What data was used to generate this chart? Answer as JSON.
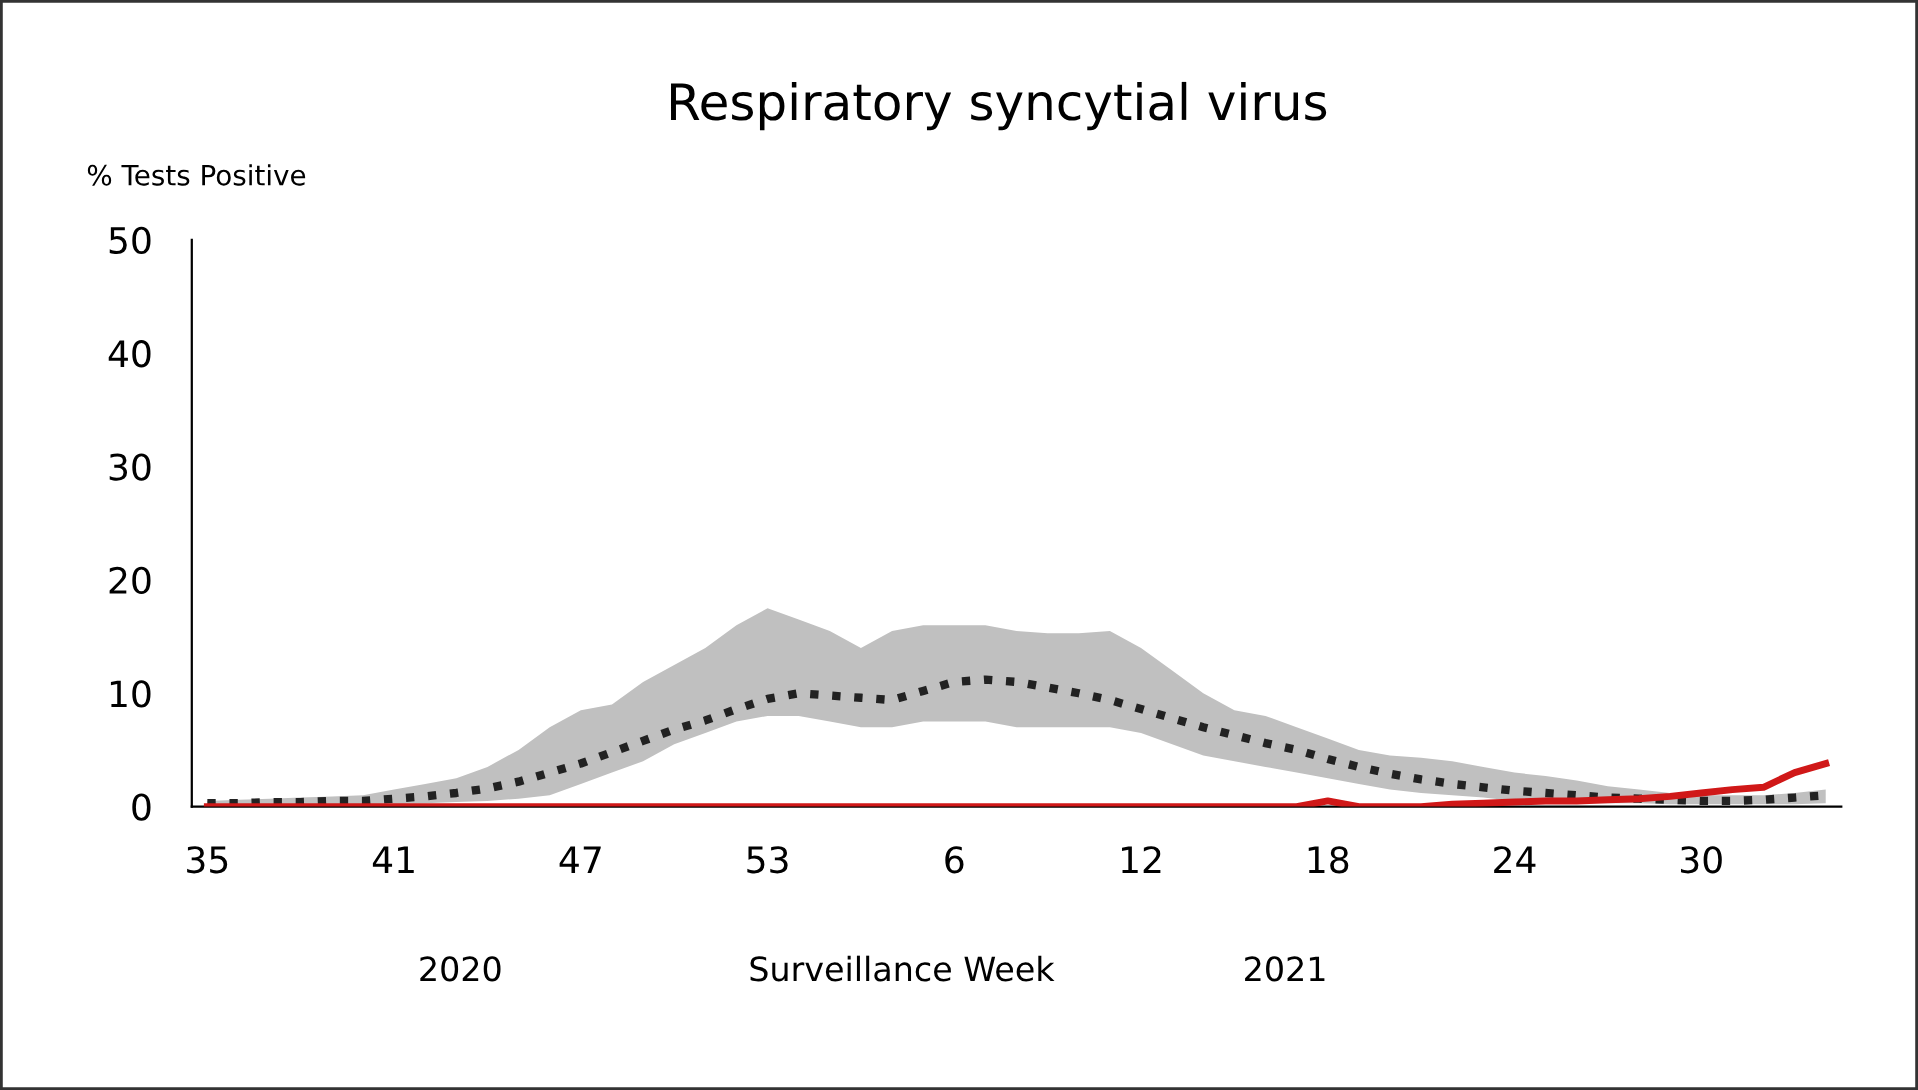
{
  "chart_data": {
    "type": "line",
    "title": "Respiratory syncytial virus",
    "xlabel": "Surveillance Week",
    "ylabel": "% Tests Positive",
    "annotations": [
      "2020",
      "2021"
    ],
    "categories": [
      "35",
      null,
      null,
      null,
      null,
      null,
      "41",
      null,
      null,
      null,
      null,
      null,
      "47",
      null,
      null,
      null,
      null,
      null,
      "53",
      null,
      null,
      null,
      null,
      null,
      "6",
      null,
      null,
      null,
      null,
      null,
      "12",
      null,
      null,
      null,
      null,
      null,
      "18",
      null,
      null,
      null,
      null,
      null,
      "24",
      null,
      null,
      null,
      null,
      null,
      "30",
      null,
      null,
      null,
      null
    ],
    "series": [
      {
        "color": "#222222",
        "line_style": "dotted",
        "values": [
          0.3,
          0.3,
          0.4,
          0.4,
          0.5,
          0.5,
          0.7,
          0.9,
          1.2,
          1.6,
          2.2,
          3,
          3.8,
          4.8,
          5.8,
          6.8,
          7.6,
          8.6,
          9.5,
          10,
          9.8,
          9.6,
          9.4,
          10.2,
          11,
          11.2,
          11,
          10.5,
          10,
          9.4,
          8.6,
          7.8,
          7,
          6.3,
          5.6,
          5,
          4.2,
          3.5,
          2.9,
          2.4,
          2,
          1.7,
          1.4,
          1.2,
          1,
          0.8,
          0.7,
          0.6,
          0.5,
          0.5,
          0.6,
          0.8,
          1
        ],
        "lower": [
          0.1,
          0.1,
          0.1,
          0.1,
          0.2,
          0.2,
          0.2,
          0.3,
          0.4,
          0.5,
          0.7,
          1,
          2,
          3,
          4,
          5.5,
          6.5,
          7.5,
          8,
          8,
          7.5,
          7,
          7,
          7.5,
          7.5,
          7.5,
          7,
          7,
          7,
          7,
          6.5,
          5.5,
          4.5,
          4,
          3.5,
          3,
          2.5,
          2,
          1.5,
          1.2,
          1,
          0.8,
          0.5,
          0.4,
          0.3,
          0.3,
          0.3,
          0.2,
          0.2,
          0.2,
          0.2,
          0.2,
          0.3
        ],
        "upper": [
          0.5,
          0.6,
          0.7,
          0.8,
          0.9,
          1,
          1.5,
          2,
          2.5,
          3.5,
          5,
          7,
          8.5,
          9,
          11,
          12.5,
          14,
          16,
          17.5,
          16.5,
          15.5,
          14,
          15.5,
          16,
          16,
          16,
          15.5,
          15.3,
          15.3,
          15.5,
          14,
          12,
          10,
          8.5,
          8,
          7,
          6,
          5,
          4.5,
          4.3,
          4,
          3.5,
          3,
          2.7,
          2.3,
          1.8,
          1.5,
          1.2,
          1,
          1,
          1,
          1.2,
          1.5
        ]
      },
      {
        "color": "#d01818",
        "line_style": "solid",
        "values": [
          0,
          0,
          0,
          0,
          0,
          0,
          0,
          0,
          0,
          0,
          0,
          0,
          0,
          0,
          0,
          0,
          0,
          0,
          0,
          0,
          0,
          0,
          0,
          0,
          0,
          0,
          0,
          0,
          0,
          0,
          0,
          0,
          0,
          0,
          0,
          0,
          0.5,
          0,
          0,
          0,
          0.2,
          0.3,
          0.4,
          0.5,
          0.5,
          0.6,
          0.7,
          0.9,
          1.2,
          1.5,
          1.7,
          3,
          3.8
        ]
      }
    ],
    "ylim": [
      0,
      50
    ],
    "yticks": [
      0,
      10,
      20,
      30,
      40,
      50
    ],
    "grid": false,
    "legend": false
  }
}
